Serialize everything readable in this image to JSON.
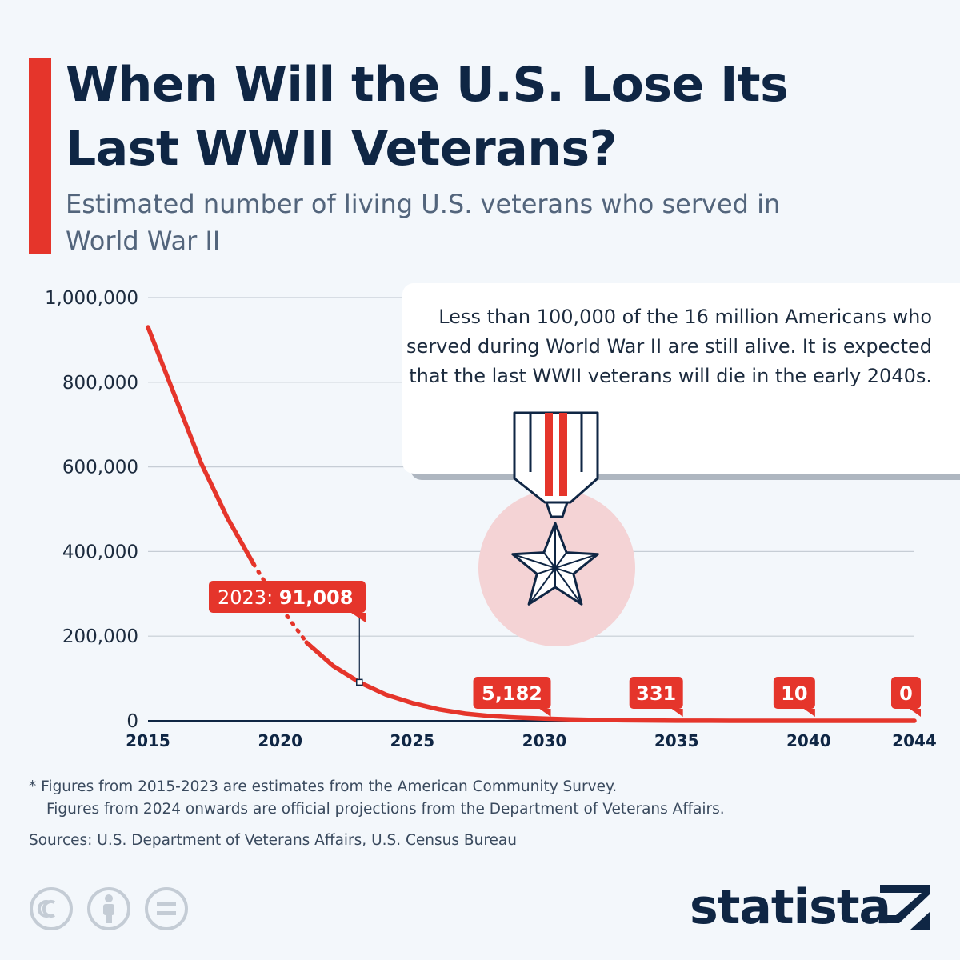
{
  "header": {
    "title": "When Will the U.S. Lose Its Last WWII Veterans?",
    "subtitle": "Estimated number of living U.S. veterans who served in World War II"
  },
  "note": {
    "text": "Less than 100,000 of the 16 million Americans who served during World War II are still alive. It is expected that the last WWII veterans will die in the early 2040s."
  },
  "chart_data": {
    "type": "line",
    "title": "When Will the U.S. Lose Its Last WWII Veterans?",
    "subtitle": "Estimated number of living U.S. veterans who served in World War II",
    "xlabel": "",
    "ylabel": "",
    "xlim": [
      2015,
      2044
    ],
    "ylim": [
      0,
      1000000
    ],
    "x_ticks": [
      "2015",
      "2020",
      "2025",
      "2030",
      "2035",
      "2040",
      "2044"
    ],
    "y_ticks": [
      "1,000,000",
      "800,000",
      "600,000",
      "400,000",
      "200,000",
      "0"
    ],
    "grid": true,
    "accent_color": "#e5352b",
    "x": [
      2015,
      2016,
      2017,
      2018,
      2019,
      2020,
      2021,
      2022,
      2023,
      2024,
      2025,
      2026,
      2027,
      2028,
      2029,
      2030,
      2031,
      2032,
      2033,
      2034,
      2035,
      2036,
      2037,
      2038,
      2039,
      2040,
      2041,
      2042,
      2043,
      2044
    ],
    "values": [
      930000,
      770000,
      610000,
      480000,
      370000,
      270000,
      185000,
      130000,
      91008,
      62000,
      42000,
      27000,
      17000,
      11000,
      7500,
      5182,
      3300,
      2000,
      1100,
      600,
      331,
      180,
      95,
      50,
      25,
      10,
      5,
      2,
      1,
      0
    ],
    "dotted_segment": [
      2019,
      2021
    ],
    "labels": [
      {
        "x": 2023,
        "value": 91008,
        "prefix": "2023: ",
        "text": "91,008"
      },
      {
        "x": 2030,
        "value": 5182,
        "text": "5,182"
      },
      {
        "x": 2035,
        "value": 331,
        "text": "331"
      },
      {
        "x": 2040,
        "value": 10,
        "text": "10"
      },
      {
        "x": 2044,
        "value": 0,
        "text": "0"
      }
    ]
  },
  "footnote": {
    "line1": "* Figures from 2015-2023 are estimates from the American Community Survey.",
    "line2": "Figures from 2024 onwards are official projections from the Department of Veterans Affairs."
  },
  "sources": "Sources: U.S. Department of Veterans Affairs, U.S. Census Bureau",
  "license_icons": [
    "cc-icon",
    "attribution-icon",
    "no-derivatives-icon"
  ],
  "brand": {
    "name": "statista",
    "color": "#0f2644"
  }
}
